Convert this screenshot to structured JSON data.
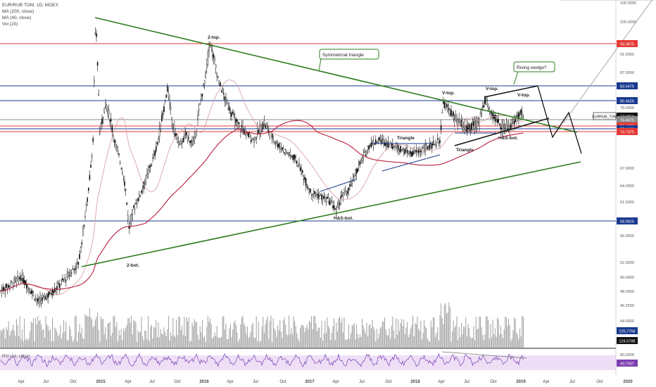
{
  "legend": {
    "symbol": "EUR/RUB TOM, 1D, MOEX",
    "ma200": "MA (200, close)",
    "ma40": "MA (40, close)",
    "vol": "Vol (20)"
  },
  "rsi_label": "RSI (14, close)",
  "chart_data": {
    "type": "candlestick",
    "symbol": "EUR/RUB TOM",
    "interval": "1D",
    "exchange": "MOEX",
    "x_ticks": [
      "Apr",
      "Jul",
      "Oct",
      "2015",
      "Apr",
      "Jul",
      "Oct",
      "2016",
      "Apr",
      "Jul",
      "Oct",
      "2017",
      "Apr",
      "Jul",
      "Oct",
      "2018",
      "Apr",
      "Jul",
      "Oct",
      "2019",
      "Apr",
      "Jul",
      "Oct",
      "2020"
    ],
    "y_ticks": [
      "105.0000",
      "100.0000",
      "93.3875",
      "91.0000",
      "87.0000",
      "83.6475",
      "80.4625",
      "79.0000",
      "77.0850",
      "76.4475",
      "75.4775",
      "75.1600",
      "74.7975",
      "67.0000",
      "64.0000",
      "61.0000",
      "58.0625",
      "56.0000",
      "52.0000",
      "50.0000",
      "48.0000",
      "46.2500",
      "44.5000",
      "42.0000"
    ],
    "ylim": [
      42,
      105
    ],
    "last_price": {
      "label": "EURRUB_TOM",
      "value": "77.0850"
    },
    "horizontal_levels": [
      {
        "value": 93.3875,
        "label": "93.3875",
        "color": "#e53935"
      },
      {
        "value": 83.6475,
        "label": "83.6475",
        "color": "#1a3a8f"
      },
      {
        "value": 80.4625,
        "label": "80.4625",
        "color": "#1a3a8f"
      },
      {
        "value": 76.4475,
        "label": "76.4475",
        "color": "#8a8a8a"
      },
      {
        "value": 75.4775,
        "label": "75.4775",
        "color": "#e53935"
      },
      {
        "value": 75.16,
        "label": "75.1600",
        "color": "#1a3a8f"
      },
      {
        "value": 74.7975,
        "label": "74.7975",
        "color": "#e53935"
      },
      {
        "value": 58.0625,
        "label": "58.0625",
        "color": "#1a3a8f"
      }
    ],
    "annotations": [
      "2-top.",
      "Symmetrical triangle",
      "Rising wedge?",
      "V-top.",
      "V-top.",
      "V-top.",
      "Triangle",
      "Triangle",
      "H&S-bot.",
      "H&S-bot.",
      "2-bot."
    ],
    "volume_labels": [
      "225,7768",
      "124,0788"
    ],
    "rsi_labels": [
      "80,0000",
      "40,7937"
    ],
    "series": [
      {
        "name": "MA (200, close)",
        "color": "#b71c3c"
      },
      {
        "name": "MA (40, close)",
        "color": "#d9a3a8"
      }
    ]
  }
}
